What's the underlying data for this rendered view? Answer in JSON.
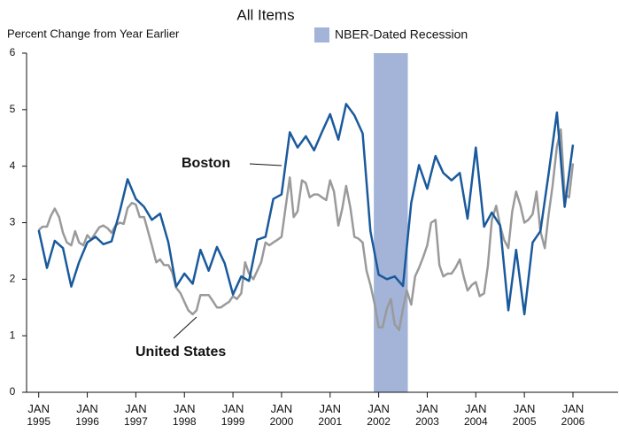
{
  "chart_data": {
    "type": "line",
    "title": "All Items",
    "y_label": "Percent Change from Year Earlier",
    "recession": {
      "name": "NBER-Dated Recession",
      "x": [
        2001.9,
        2002.6
      ],
      "color": "#a3b4d8"
    },
    "annotations": [
      "Boston",
      "United States"
    ],
    "xlim": [
      1994.75,
      2006.93
    ],
    "xticks": [
      {
        "value": 1995,
        "label": "JAN 1995"
      },
      {
        "value": 1996,
        "label": "JAN 1996"
      },
      {
        "value": 1997,
        "label": "JAN 1997"
      },
      {
        "value": 1998,
        "label": "JAN 1998"
      },
      {
        "value": 1999,
        "label": "JAN 1999"
      },
      {
        "value": 2000,
        "label": "JAN 2000"
      },
      {
        "value": 2001,
        "label": "JAN 2001"
      },
      {
        "value": 2002,
        "label": "JAN 2002"
      },
      {
        "value": 2003,
        "label": "JAN 2003"
      },
      {
        "value": 2004,
        "label": "JAN 2004"
      },
      {
        "value": 2005,
        "label": "JAN 2005"
      },
      {
        "value": 2006,
        "label": "JAN 2006"
      }
    ],
    "ylim": [
      0,
      6
    ],
    "yticks": [
      0,
      1,
      2,
      3,
      4,
      5,
      6
    ],
    "grid": false,
    "series": [
      {
        "name": "United States",
        "color": "#9a9a9a",
        "x": [
          1995,
          1995.08,
          1995.17,
          1995.25,
          1995.33,
          1995.42,
          1995.5,
          1995.58,
          1995.67,
          1995.75,
          1995.83,
          1995.92,
          1996,
          1996.08,
          1996.17,
          1996.25,
          1996.33,
          1996.42,
          1996.5,
          1996.58,
          1996.67,
          1996.75,
          1996.83,
          1996.92,
          1997,
          1997.08,
          1997.17,
          1997.25,
          1997.33,
          1997.42,
          1997.5,
          1997.58,
          1997.67,
          1997.75,
          1997.83,
          1997.92,
          1998,
          1998.08,
          1998.17,
          1998.25,
          1998.33,
          1998.42,
          1998.5,
          1998.58,
          1998.67,
          1998.75,
          1998.83,
          1998.92,
          1999,
          1999.08,
          1999.17,
          1999.25,
          1999.33,
          1999.42,
          1999.5,
          1999.58,
          1999.67,
          1999.75,
          1999.83,
          1999.92,
          2000,
          2000.08,
          2000.17,
          2000.25,
          2000.33,
          2000.42,
          2000.5,
          2000.58,
          2000.67,
          2000.75,
          2000.83,
          2000.92,
          2001,
          2001.08,
          2001.17,
          2001.25,
          2001.33,
          2001.42,
          2001.5,
          2001.58,
          2001.67,
          2001.75,
          2001.83,
          2001.92,
          2002,
          2002.08,
          2002.17,
          2002.25,
          2002.33,
          2002.42,
          2002.5,
          2002.58,
          2002.67,
          2002.75,
          2002.83,
          2002.92,
          2003,
          2003.08,
          2003.17,
          2003.25,
          2003.33,
          2003.42,
          2003.5,
          2003.58,
          2003.67,
          2003.75,
          2003.83,
          2003.92,
          2004,
          2004.08,
          2004.17,
          2004.25,
          2004.33,
          2004.42,
          2004.5,
          2004.58,
          2004.67,
          2004.75,
          2004.83,
          2004.92,
          2005,
          2005.08,
          2005.17,
          2005.25,
          2005.33,
          2005.42,
          2005.5,
          2005.58,
          2005.67,
          2005.75,
          2005.83,
          2005.92,
          2006
        ],
        "values": [
          2.87,
          2.93,
          2.93,
          3.12,
          3.25,
          3.1,
          2.82,
          2.65,
          2.6,
          2.85,
          2.65,
          2.6,
          2.78,
          2.7,
          2.82,
          2.92,
          2.95,
          2.9,
          2.82,
          2.95,
          3.0,
          2.98,
          3.26,
          3.35,
          3.32,
          3.1,
          3.1,
          2.85,
          2.6,
          2.3,
          2.35,
          2.25,
          2.25,
          2.12,
          1.85,
          1.75,
          1.6,
          1.45,
          1.38,
          1.45,
          1.72,
          1.72,
          1.72,
          1.62,
          1.5,
          1.5,
          1.55,
          1.6,
          1.7,
          1.65,
          1.75,
          2.3,
          2.1,
          2.0,
          2.15,
          2.3,
          2.65,
          2.6,
          2.65,
          2.7,
          2.75,
          3.25,
          3.8,
          3.1,
          3.2,
          3.75,
          3.7,
          3.45,
          3.5,
          3.5,
          3.45,
          3.4,
          3.75,
          3.55,
          2.95,
          3.25,
          3.65,
          3.25,
          2.75,
          2.72,
          2.65,
          2.15,
          1.9,
          1.55,
          1.15,
          1.15,
          1.48,
          1.65,
          1.2,
          1.1,
          1.48,
          1.8,
          1.55,
          2.05,
          2.2,
          2.4,
          2.6,
          3.0,
          3.05,
          2.25,
          2.05,
          2.1,
          2.1,
          2.2,
          2.35,
          2.05,
          1.8,
          1.9,
          1.95,
          1.7,
          1.75,
          2.25,
          3.05,
          3.3,
          2.95,
          2.7,
          2.55,
          3.2,
          3.55,
          3.3,
          3.0,
          3.05,
          3.15,
          3.55,
          2.85,
          2.55,
          3.15,
          3.65,
          4.35,
          4.65,
          3.5,
          3.45,
          4.05
        ]
      },
      {
        "name": "Boston",
        "color": "#1a5a9c",
        "x": [
          1995,
          1995.17,
          1995.33,
          1995.5,
          1995.67,
          1995.83,
          1996,
          1996.17,
          1996.33,
          1996.5,
          1996.67,
          1996.83,
          1997,
          1997.17,
          1997.33,
          1997.5,
          1997.67,
          1997.83,
          1998,
          1998.17,
          1998.33,
          1998.5,
          1998.67,
          1998.83,
          1999,
          1999.17,
          1999.33,
          1999.5,
          1999.67,
          1999.83,
          2000,
          2000.17,
          2000.33,
          2000.5,
          2000.67,
          2000.83,
          2001,
          2001.17,
          2001.33,
          2001.5,
          2001.67,
          2001.83,
          2002,
          2002.17,
          2002.33,
          2002.5,
          2002.67,
          2002.83,
          2003,
          2003.17,
          2003.33,
          2003.5,
          2003.67,
          2003.83,
          2004,
          2004.17,
          2004.33,
          2004.5,
          2004.67,
          2004.83,
          2005,
          2005.17,
          2005.33,
          2005.5,
          2005.67,
          2005.83,
          2006
        ],
        "values": [
          2.87,
          2.2,
          2.68,
          2.55,
          1.87,
          2.3,
          2.65,
          2.75,
          2.62,
          2.67,
          3.2,
          3.77,
          3.42,
          3.28,
          3.05,
          3.16,
          2.65,
          1.87,
          2.1,
          1.92,
          2.52,
          2.15,
          2.57,
          2.28,
          1.73,
          2.05,
          1.97,
          2.7,
          2.75,
          3.42,
          3.5,
          4.6,
          4.33,
          4.53,
          4.28,
          4.6,
          4.92,
          4.47,
          5.1,
          4.9,
          4.58,
          2.85,
          2.08,
          2.0,
          2.05,
          1.88,
          3.35,
          4.02,
          3.6,
          4.18,
          3.88,
          3.75,
          3.88,
          3.07,
          4.33,
          2.93,
          3.18,
          2.95,
          1.45,
          2.52,
          1.38,
          2.65,
          2.85,
          3.87,
          4.95,
          3.28,
          4.38
        ]
      }
    ]
  }
}
